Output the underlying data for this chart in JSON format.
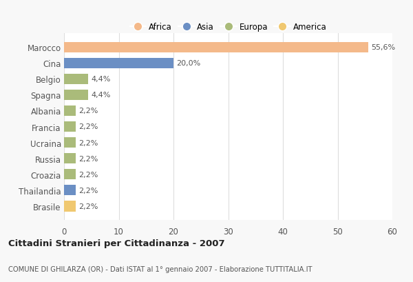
{
  "categories": [
    "Brasile",
    "Thailandia",
    "Croazia",
    "Russia",
    "Ucraina",
    "Francia",
    "Albania",
    "Spagna",
    "Belgio",
    "Cina",
    "Marocco"
  ],
  "values": [
    2.2,
    2.2,
    2.2,
    2.2,
    2.2,
    2.2,
    2.2,
    4.4,
    4.4,
    20.0,
    55.6
  ],
  "colors": [
    "#f0c870",
    "#6b8fc4",
    "#aabb7a",
    "#aabb7a",
    "#aabb7a",
    "#aabb7a",
    "#aabb7a",
    "#aabb7a",
    "#aabb7a",
    "#6b8fc4",
    "#f4b98a"
  ],
  "labels": [
    "2,2%",
    "2,2%",
    "2,2%",
    "2,2%",
    "2,2%",
    "2,2%",
    "2,2%",
    "4,4%",
    "4,4%",
    "20,0%",
    "55,6%"
  ],
  "continent_legend": [
    "Africa",
    "Asia",
    "Europa",
    "America"
  ],
  "continent_colors": [
    "#f4b98a",
    "#6b8fc4",
    "#aabb7a",
    "#f0c870"
  ],
  "xlim": [
    0,
    60
  ],
  "xticks": [
    0,
    10,
    20,
    30,
    40,
    50,
    60
  ],
  "title": "Cittadini Stranieri per Cittadinanza - 2007",
  "subtitle": "COMUNE DI GHILARZA (OR) - Dati ISTAT al 1° gennaio 2007 - Elaborazione TUTTITALIA.IT",
  "bg_color": "#f8f8f8",
  "bar_bg_color": "#ffffff",
  "grid_color": "#dddddd",
  "bar_height": 0.65
}
